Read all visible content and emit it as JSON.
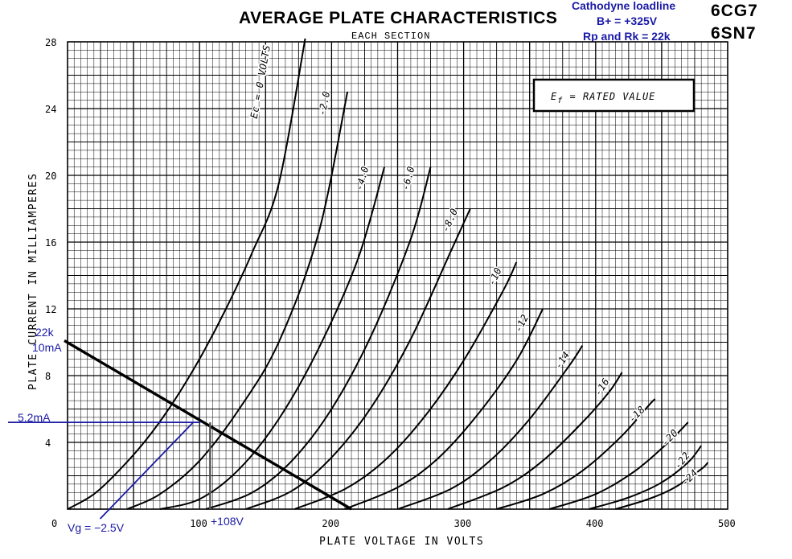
{
  "header": {
    "title": "AVERAGE PLATE CHARACTERISTICS",
    "subtitle": "EACH SECTION",
    "tube_line1": "6CG7",
    "tube_line2": "6SN7",
    "overlay_line1": "Cathodyne loadline",
    "overlay_line2": "B+ = +325V",
    "overlay_line3": "Rp and Rk = 22k"
  },
  "legend_box": {
    "prefix": "E",
    "subscript": "f",
    "suffix": " = RATED VALUE"
  },
  "annotations": {
    "load_r": "22k",
    "load_i": "10mA",
    "op_current": "5.2mA",
    "grid_voltage": "Vg = −2.5V",
    "op_voltage": "+108V",
    "colors": {
      "overlay": "#1a1aa6",
      "ink": "#000000"
    }
  },
  "chart_data": {
    "type": "line",
    "title": "AVERAGE PLATE CHARACTERISTICS",
    "subtitle": "EACH SECTION",
    "xlabel": "PLATE VOLTAGE IN VOLTS",
    "ylabel": "PLATE CURRENT IN MILLIAMPERES",
    "xlim": [
      0,
      500
    ],
    "ylim": [
      0,
      28
    ],
    "x_ticks": [
      "0",
      "100",
      "200",
      "300",
      "400",
      "500"
    ],
    "y_ticks": [
      "4",
      "8",
      "12",
      "16",
      "20",
      "24",
      "28"
    ],
    "grid": true,
    "series": [
      {
        "name": "Ec = 0 VOLTS",
        "label": "Ec = 0 VOLTS",
        "x": [
          0,
          20,
          40,
          60,
          80,
          100,
          120,
          140,
          160,
          180
        ],
        "y": [
          0,
          0.9,
          2.4,
          4.2,
          6.4,
          9.0,
          12.0,
          15.4,
          19.5,
          28.2
        ]
      },
      {
        "name": "-2.0",
        "label": "-2.0",
        "x": [
          45,
          70,
          100,
          130,
          160,
          190,
          212
        ],
        "y": [
          0,
          0.9,
          2.9,
          6.0,
          10.0,
          16.5,
          25.0
        ]
      },
      {
        "name": "-4.0",
        "label": "-4.0",
        "x": [
          70,
          100,
          130,
          160,
          190,
          220,
          240
        ],
        "y": [
          0,
          0.6,
          2.4,
          5.4,
          9.6,
          15.0,
          20.5
        ]
      },
      {
        "name": "-6.0",
        "label": "-6.0",
        "x": [
          105,
          140,
          170,
          200,
          230,
          260,
          275
        ],
        "y": [
          0,
          1.0,
          2.9,
          6.0,
          10.4,
          16.2,
          20.5
        ]
      },
      {
        "name": "-8.0",
        "label": "-8.0",
        "x": [
          135,
          170,
          200,
          230,
          260,
          290,
          305
        ],
        "y": [
          0,
          1.1,
          3.1,
          6.1,
          10.2,
          15.4,
          18.0
        ]
      },
      {
        "name": "-10",
        "label": "-10",
        "x": [
          172,
          210,
          240,
          270,
          300,
          330,
          340
        ],
        "y": [
          0,
          1.2,
          2.9,
          5.5,
          8.9,
          13.1,
          14.8
        ]
      },
      {
        "name": "-12",
        "label": "-12",
        "x": [
          210,
          250,
          280,
          310,
          340,
          360
        ],
        "y": [
          0,
          1.3,
          3.0,
          5.6,
          8.9,
          12.0
        ]
      },
      {
        "name": "-14",
        "label": "-14",
        "x": [
          250,
          290,
          320,
          350,
          380,
          390
        ],
        "y": [
          0,
          1.2,
          2.9,
          5.4,
          8.6,
          9.8
        ]
      },
      {
        "name": "-16",
        "label": "-16",
        "x": [
          288,
          330,
          360,
          390,
          410,
          420
        ],
        "y": [
          0,
          1.3,
          2.9,
          5.2,
          7.0,
          8.2
        ]
      },
      {
        "name": "-18",
        "label": "-18",
        "x": [
          325,
          360,
          390,
          420,
          440,
          445
        ],
        "y": [
          0,
          0.9,
          2.3,
          4.4,
          6.2,
          6.6
        ]
      },
      {
        "name": "-20",
        "label": "-20",
        "x": [
          365,
          400,
          430,
          455,
          470
        ],
        "y": [
          0,
          0.9,
          2.3,
          4.0,
          5.2
        ]
      },
      {
        "name": "-22",
        "label": "-22",
        "x": [
          395,
          425,
          450,
          470,
          480
        ],
        "y": [
          0,
          0.7,
          1.6,
          2.8,
          3.8
        ]
      },
      {
        "name": "-24",
        "label": "-24",
        "x": [
          415,
          440,
          460,
          480,
          485
        ],
        "y": [
          0,
          0.6,
          1.3,
          2.4,
          2.8
        ]
      }
    ],
    "loadline": {
      "x": [
        0,
        215
      ],
      "y": [
        10,
        0
      ]
    },
    "bias_line": {
      "x": [
        32,
        100
      ],
      "y": [
        0,
        5.2
      ]
    },
    "operating_point": {
      "x": 108,
      "y": 5.2
    }
  }
}
